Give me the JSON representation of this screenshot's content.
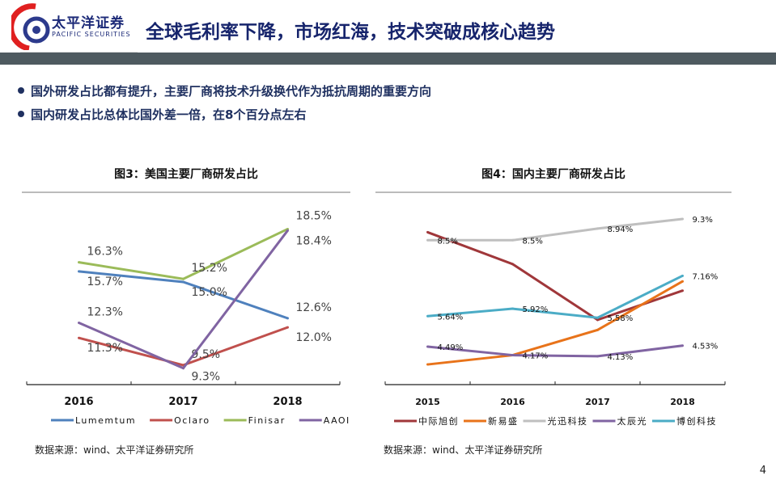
{
  "header": {
    "brand_cn": "太平洋证券",
    "brand_en": "PACIFIC SECURITIES",
    "title": "全球毛利率下降，市场红海，技术突破成核心趋势"
  },
  "bullets": [
    "国外研发占比都有提升，主要厂商将技术升级换代作为抵抗周期的重要方向",
    "国内研发占比总体比国外差一倍，在8个百分点左右"
  ],
  "page_number": "4",
  "chart_data": [
    {
      "type": "line",
      "title": "图3：美国主要厂商研发占比",
      "categories": [
        "2016",
        "2017",
        "2018"
      ],
      "ylim": [
        8,
        20.5
      ],
      "grid": false,
      "legend": "bottom",
      "series": [
        {
          "name": "Lumemtum",
          "color": "#4f81bd",
          "values": [
            15.7,
            15.0,
            12.6
          ],
          "labels": [
            "15.7%",
            "15.0%",
            "12.6%"
          ]
        },
        {
          "name": "Oclaro",
          "color": "#c0504d",
          "values": [
            11.3,
            9.5,
            12.0
          ],
          "labels": [
            "11.3%",
            "9.5%",
            "12.0%"
          ]
        },
        {
          "name": "Finisar",
          "color": "#9bbb59",
          "values": [
            16.3,
            15.2,
            18.5
          ],
          "labels": [
            "16.3%",
            "15.2%",
            "18.5%"
          ]
        },
        {
          "name": "AAOI",
          "color": "#8064a2",
          "values": [
            12.3,
            9.3,
            18.4
          ],
          "labels": [
            "12.3%",
            "9.3%",
            "18.4%"
          ]
        }
      ],
      "source": "数据来源：wind、太平洋证券研究所"
    },
    {
      "type": "line",
      "title": "图4：国内主要厂商研发占比",
      "categories": [
        "2015",
        "2016",
        "2017",
        "2018"
      ],
      "ylim": [
        3,
        10
      ],
      "grid": false,
      "legend": "bottom",
      "series": [
        {
          "name": "中际旭创",
          "color": "#a0373a",
          "values": [
            8.8,
            7.6,
            5.5,
            6.6
          ],
          "labels": [
            "",
            "",
            "",
            ""
          ]
        },
        {
          "name": "新易盛",
          "color": "#e8731a",
          "values": [
            3.82,
            4.17,
            5.12,
            6.95
          ],
          "labels": [
            "",
            "",
            "",
            ""
          ]
        },
        {
          "name": "光迅科技",
          "color": "#bfbfbf",
          "values": [
            8.5,
            8.5,
            8.94,
            9.3
          ],
          "labels": [
            "8.5%",
            "8.5%",
            "8.94%",
            "9.3%"
          ]
        },
        {
          "name": "太辰光",
          "color": "#8064a2",
          "values": [
            4.49,
            4.17,
            4.13,
            4.53
          ],
          "labels": [
            "4.49%",
            "4.17%",
            "4.13%",
            "4.53%"
          ]
        },
        {
          "name": "博创科技",
          "color": "#4bacc6",
          "values": [
            5.64,
            5.92,
            5.58,
            7.16
          ],
          "labels": [
            "5.64%",
            "5.92%",
            "5.58%",
            "7.16%"
          ]
        }
      ],
      "source": "数据来源：wind、太平洋证券研究所"
    }
  ]
}
